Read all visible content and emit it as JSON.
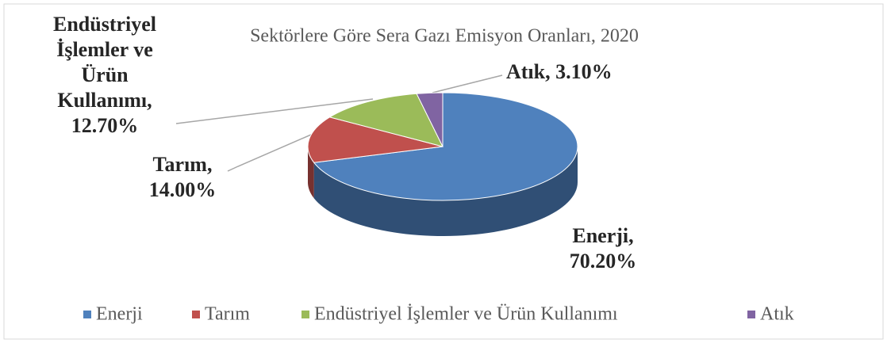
{
  "chart_data": {
    "type": "pie3d",
    "title": "Sektörlere Göre Sera Gazı Emisyon Oranları, 2020",
    "categories": [
      "Enerji",
      "Tarım",
      "Endüstriyel İşlemler ve Ürün Kullanımı",
      "Atık"
    ],
    "values": [
      70.2,
      14.0,
      12.7,
      3.1
    ],
    "value_labels": [
      "70.20%",
      "14.00%",
      "12.70%",
      "3.10%"
    ],
    "label_separator": ",",
    "colors": [
      "#4f81bd",
      "#c0504d",
      "#9bbb59",
      "#8064a2"
    ],
    "legend": "bottom"
  }
}
